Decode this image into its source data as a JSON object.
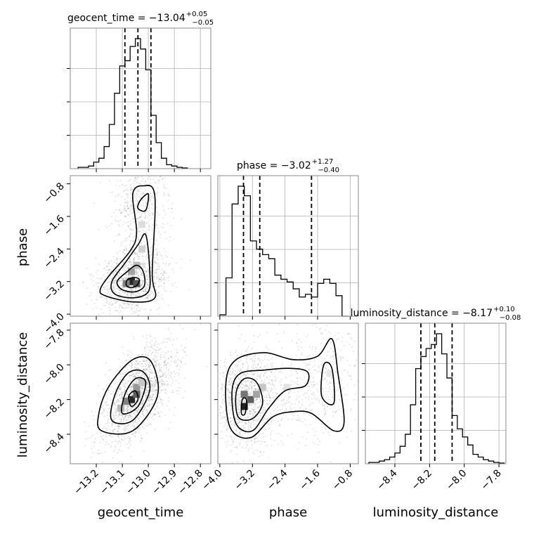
{
  "colors": {
    "line": "#000000",
    "grid": "#b0b0b0",
    "scatter": "#9a9a9a",
    "background": "#ffffff"
  },
  "chart_data": {
    "type": "corner",
    "parameters": [
      "geocent_time",
      "phase",
      "luminosity_distance"
    ],
    "axis_labels": [
      "geocent_time",
      "phase",
      "luminosity_distance"
    ],
    "ranges": [
      [
        -13.3,
        -12.76
      ],
      [
        -4.05,
        -0.6
      ],
      [
        -8.57,
        -7.76
      ]
    ],
    "ticks": [
      [
        -13.2,
        -13.1,
        -13.0,
        -12.9,
        -12.8
      ],
      [
        -4.0,
        -3.2,
        -2.4,
        -1.6,
        -0.8
      ],
      [
        -8.4,
        -8.2,
        -8.0,
        -7.8
      ]
    ],
    "tick_labels": [
      [
        "−13.2",
        "−13.1",
        "−13.0",
        "−12.9",
        "−12.8"
      ],
      [
        "−4.0",
        "−3.2",
        "−2.4",
        "−1.6",
        "−0.8"
      ],
      [
        "−8.4",
        "−8.2",
        "−8.0",
        "−7.8"
      ]
    ],
    "titles": [
      {
        "main": "geocent_time = −13.04",
        "upper": "+0.05",
        "lower": "−0.05"
      },
      {
        "main": "phase = −3.02",
        "upper": "+1.27",
        "lower": "−0.40"
      },
      {
        "main": "luminosity_distance = −8.17",
        "upper": "+0.10",
        "lower": "−0.08"
      }
    ],
    "quantiles": [
      [
        -13.09,
        -13.04,
        -12.99
      ],
      [
        -3.42,
        -3.02,
        -1.75
      ],
      [
        -8.25,
        -8.17,
        -8.07
      ]
    ],
    "histograms": [
      {
        "edges": [
          -13.27,
          -13.25,
          -13.23,
          -13.21,
          -13.19,
          -13.17,
          -13.15,
          -13.13,
          -13.11,
          -13.09,
          -13.07,
          -13.05,
          -13.03,
          -13.01,
          -12.99,
          -12.97,
          -12.95,
          -12.93,
          -12.91,
          -12.89,
          -12.87,
          -12.85
        ],
        "counts": [
          0.01,
          0.01,
          0.02,
          0.05,
          0.08,
          0.17,
          0.34,
          0.58,
          0.79,
          0.83,
          0.94,
          1.0,
          0.92,
          0.76,
          0.41,
          0.2,
          0.08,
          0.03,
          0.02,
          0.01,
          0.005
        ]
      },
      {
        "edges": [
          -4.0,
          -3.85,
          -3.7,
          -3.55,
          -3.4,
          -3.25,
          -3.1,
          -2.95,
          -2.8,
          -2.65,
          -2.5,
          -2.35,
          -2.2,
          -2.05,
          -1.9,
          -1.75,
          -1.6,
          -1.45,
          -1.3,
          -1.15,
          -1.0,
          -0.85
        ],
        "counts": [
          0.01,
          0.28,
          0.82,
          0.95,
          0.88,
          0.55,
          0.49,
          0.45,
          0.42,
          0.3,
          0.27,
          0.25,
          0.2,
          0.14,
          0.16,
          0.14,
          0.24,
          0.27,
          0.24,
          0.15,
          0.0
        ]
      },
      {
        "edges": [
          -8.55,
          -8.52,
          -8.49,
          -8.46,
          -8.43,
          -8.4,
          -8.37,
          -8.34,
          -8.31,
          -8.28,
          -8.25,
          -8.22,
          -8.19,
          -8.16,
          -8.13,
          -8.1,
          -8.07,
          -8.04,
          -8.01,
          -7.98,
          -7.95,
          -7.92,
          -7.89,
          -7.86,
          -7.83,
          -7.8,
          -7.77
        ],
        "counts": [
          0.01,
          0.01,
          0.02,
          0.03,
          0.05,
          0.08,
          0.13,
          0.22,
          0.44,
          0.71,
          0.8,
          0.86,
          0.89,
          0.97,
          0.82,
          0.64,
          0.36,
          0.26,
          0.2,
          0.14,
          0.07,
          0.05,
          0.03,
          0.02,
          0.01,
          0.005
        ]
      }
    ],
    "pairs": [
      {
        "x": 0,
        "y": 1,
        "peaks": [
          {
            "x": -13.06,
            "y": -3.2,
            "sx": 0.045,
            "sy": 0.25,
            "w": 0.65,
            "rho": 0.2
          },
          {
            "x": -13.03,
            "y": -1.5,
            "sx": 0.035,
            "sy": 0.45,
            "w": 0.35,
            "rho": 0.1
          }
        ],
        "cells": [
          {
            "x": -13.065,
            "y": -3.2,
            "v": 0.95
          },
          {
            "x": -13.045,
            "y": -3.25,
            "v": 0.75
          },
          {
            "x": -13.085,
            "y": -3.25,
            "v": 0.55
          },
          {
            "x": -13.065,
            "y": -2.95,
            "v": 0.4
          },
          {
            "x": -13.045,
            "y": -2.8,
            "v": 0.3
          },
          {
            "x": -13.025,
            "y": -2.4,
            "v": 0.2
          },
          {
            "x": -13.025,
            "y": -1.8,
            "v": 0.15
          }
        ],
        "contours": [
          [
            [
              -13.07,
              -3.35
            ],
            [
              -13.045,
              -3.3
            ],
            [
              -13.035,
              -3.15
            ],
            [
              -13.055,
              -3.1
            ],
            [
              -13.08,
              -3.15
            ],
            [
              -13.085,
              -3.28
            ]
          ],
          [
            [
              -13.1,
              -3.4
            ],
            [
              -13.05,
              -3.45
            ],
            [
              -13.015,
              -3.3
            ],
            [
              -13.02,
              -2.95
            ],
            [
              -13.045,
              -2.8
            ],
            [
              -13.08,
              -2.95
            ],
            [
              -13.12,
              -3.2
            ]
          ],
          [
            [
              -13.13,
              -3.5
            ],
            [
              -13.06,
              -3.6
            ],
            [
              -13.0,
              -3.45
            ],
            [
              -12.995,
              -2.9
            ],
            [
              -13.01,
              -2.05
            ],
            [
              -13.04,
              -2.3
            ],
            [
              -13.09,
              -2.75
            ],
            [
              -13.14,
              -3.2
            ]
          ],
          [
            [
              -13.165,
              -3.55
            ],
            [
              -13.06,
              -3.7
            ],
            [
              -12.975,
              -3.6
            ],
            [
              -12.985,
              -3.0
            ],
            [
              -12.975,
              -1.1
            ],
            [
              -13.02,
              -0.85
            ],
            [
              -13.06,
              -1.05
            ],
            [
              -13.045,
              -2.0
            ],
            [
              -13.07,
              -2.45
            ],
            [
              -13.15,
              -3.05
            ],
            [
              -13.185,
              -3.4
            ]
          ],
          [
            [
              -13.03,
              -1.2
            ],
            [
              -13.0,
              -1.05
            ],
            [
              -13.01,
              -1.45
            ],
            [
              -13.04,
              -1.4
            ]
          ]
        ]
      },
      {
        "x": 0,
        "y": 2,
        "peaks": [
          {
            "x": -13.04,
            "y": -8.17,
            "sx": 0.05,
            "sy": 0.1,
            "w": 1.0,
            "rho": 0.62
          }
        ],
        "cells": [
          {
            "x": -13.065,
            "y": -8.2,
            "v": 0.95
          },
          {
            "x": -13.045,
            "y": -8.17,
            "v": 0.7
          },
          {
            "x": -13.085,
            "y": -8.21,
            "v": 0.55
          },
          {
            "x": -13.045,
            "y": -8.13,
            "v": 0.45
          },
          {
            "x": -13.105,
            "y": -8.25,
            "v": 0.3
          },
          {
            "x": -13.025,
            "y": -8.1,
            "v": 0.25
          }
        ],
        "contours": [
          [
            [
              -13.065,
              -8.24
            ],
            [
              -13.04,
              -8.2
            ],
            [
              -13.05,
              -8.15
            ],
            [
              -13.075,
              -8.18
            ]
          ],
          [
            [
              -13.1,
              -8.28
            ],
            [
              -13.04,
              -8.24
            ],
            [
              -13.01,
              -8.1
            ],
            [
              -13.05,
              -8.08
            ],
            [
              -13.09,
              -8.17
            ]
          ],
          [
            [
              -13.14,
              -8.32
            ],
            [
              -13.06,
              -8.32
            ],
            [
              -12.995,
              -8.15
            ],
            [
              -13.02,
              -8.04
            ],
            [
              -13.08,
              -8.05
            ],
            [
              -13.13,
              -8.18
            ]
          ],
          [
            [
              -13.18,
              -8.38
            ],
            [
              -13.06,
              -8.38
            ],
            [
              -12.965,
              -8.18
            ],
            [
              -12.99,
              -7.98
            ],
            [
              -13.06,
              -7.97
            ],
            [
              -13.15,
              -8.12
            ],
            [
              -13.19,
              -8.28
            ]
          ]
        ]
      },
      {
        "x": 1,
        "y": 2,
        "peaks": [
          {
            "x": -3.35,
            "y": -8.2,
            "sx": 0.25,
            "sy": 0.09,
            "w": 0.65,
            "rho": 0.1
          },
          {
            "x": -1.7,
            "y": -8.1,
            "sx": 0.5,
            "sy": 0.12,
            "w": 0.35,
            "rho": 0.3
          }
        ],
        "cells": [
          {
            "x": -3.4,
            "y": -8.24,
            "v": 0.95
          },
          {
            "x": -3.25,
            "y": -8.2,
            "v": 0.7
          },
          {
            "x": -3.4,
            "y": -8.17,
            "v": 0.6
          },
          {
            "x": -3.1,
            "y": -8.17,
            "v": 0.4
          },
          {
            "x": -2.95,
            "y": -8.13,
            "v": 0.25
          },
          {
            "x": -2.35,
            "y": -8.13,
            "v": 0.12
          },
          {
            "x": -1.3,
            "y": -8.05,
            "v": 0.1
          }
        ],
        "contours": [
          [
            [
              -3.47,
              -8.28
            ],
            [
              -3.38,
              -8.28
            ],
            [
              -3.35,
              -8.2
            ],
            [
              -3.45,
              -8.2
            ]
          ],
          [
            [
              -3.55,
              -8.3
            ],
            [
              -3.2,
              -8.31
            ],
            [
              -2.95,
              -8.22
            ],
            [
              -3.1,
              -8.1
            ],
            [
              -3.4,
              -8.08
            ],
            [
              -3.6,
              -8.16
            ]
          ],
          [
            [
              -3.6,
              -8.34
            ],
            [
              -3.2,
              -8.38
            ],
            [
              -2.8,
              -8.25
            ],
            [
              -2.4,
              -8.15
            ],
            [
              -1.9,
              -8.12
            ],
            [
              -1.85,
              -8.04
            ],
            [
              -2.3,
              -8.02
            ],
            [
              -2.9,
              -8.03
            ],
            [
              -3.5,
              -8.05
            ],
            [
              -3.7,
              -8.15
            ]
          ],
          [
            [
              -3.75,
              -8.36
            ],
            [
              -3.25,
              -8.42
            ],
            [
              -2.7,
              -8.3
            ],
            [
              -2.2,
              -8.27
            ],
            [
              -1.75,
              -8.28
            ],
            [
              -1.2,
              -8.38
            ],
            [
              -0.95,
              -8.33
            ],
            [
              -1.1,
              -8.05
            ],
            [
              -1.25,
              -7.85
            ],
            [
              -1.6,
              -7.95
            ],
            [
              -2.2,
              -7.97
            ],
            [
              -2.9,
              -7.93
            ],
            [
              -3.6,
              -7.97
            ],
            [
              -3.85,
              -8.1
            ]
          ],
          [
            [
              -1.5,
              -8.18
            ],
            [
              -1.2,
              -8.22
            ],
            [
              -1.25,
              -8.02
            ],
            [
              -1.45,
              -8.0
            ]
          ]
        ]
      }
    ]
  }
}
